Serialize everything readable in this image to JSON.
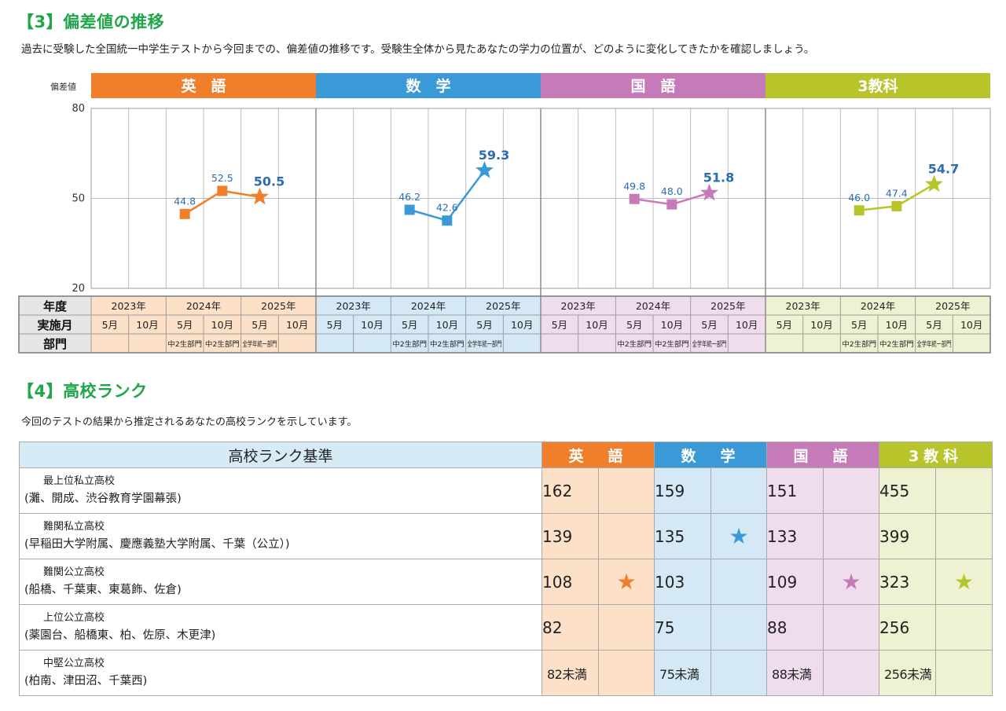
{
  "section3": {
    "title": "【3】偏差値の推移",
    "description": "過去に受験した全国統一中学生テストから今回までの、偏差値の推移です。受験生全体から見たあなたの学力の位置が、どのように変化してきたかを確認しましょう。"
  },
  "section4": {
    "title": "【4】高校ランク",
    "description": "今回のテストの結果から推定されるあなたの高校ランクを示しています。"
  },
  "colors": {
    "english": "#ef7f2a",
    "math": "#3a9ad8",
    "japanese": "#c77ab8",
    "total": "#b8c52a",
    "english_light": "#fce0c8",
    "math_light": "#d4e8f6",
    "japanese_light": "#efdcec",
    "total_light": "#eef2d2",
    "criteria_header": "#d7ebf7",
    "row_header": "#e6e6e6",
    "grid": "#bdbdbd"
  },
  "chart_data": {
    "type": "line",
    "ylabel": "偏差値",
    "ylim": [
      20,
      80
    ],
    "yticks": [
      20,
      50,
      80
    ],
    "grid": true,
    "row_labels": {
      "year": "年度",
      "month": "実施月",
      "division": "部門"
    },
    "years": [
      {
        "label": "2023年",
        "span": [
          0,
          1
        ]
      },
      {
        "label": "2024年",
        "span": [
          2,
          3
        ]
      },
      {
        "label": "2025年",
        "span": [
          4,
          5
        ]
      }
    ],
    "months": [
      "5月",
      "10月",
      "5月",
      "10月",
      "5月",
      "10月"
    ],
    "divisions": [
      "",
      "",
      "中2生部門",
      "中2生部門",
      "全学年統一部門",
      ""
    ],
    "series": [
      {
        "name": "英　語",
        "colorKey": "english",
        "points": [
          {
            "slot": 2,
            "value": 44.8,
            "label": "44.8"
          },
          {
            "slot": 3,
            "value": 52.5,
            "label": "52.5"
          },
          {
            "slot": 4,
            "value": 50.5,
            "label": "50.5",
            "current": true
          }
        ]
      },
      {
        "name": "数　学",
        "colorKey": "math",
        "points": [
          {
            "slot": 2,
            "value": 46.2,
            "label": "46.2"
          },
          {
            "slot": 3,
            "value": 42.6,
            "label": "42.6"
          },
          {
            "slot": 4,
            "value": 59.3,
            "label": "59.3",
            "current": true
          }
        ]
      },
      {
        "name": "国　語",
        "colorKey": "japanese",
        "points": [
          {
            "slot": 2,
            "value": 49.8,
            "label": "49.8"
          },
          {
            "slot": 3,
            "value": 48.0,
            "label": "48.0"
          },
          {
            "slot": 4,
            "value": 51.8,
            "label": "51.8",
            "current": true
          }
        ]
      },
      {
        "name": "3教科",
        "colorKey": "total",
        "points": [
          {
            "slot": 2,
            "value": 46.0,
            "label": "46.0"
          },
          {
            "slot": 3,
            "value": 47.4,
            "label": "47.4"
          },
          {
            "slot": 4,
            "value": 54.7,
            "label": "54.7",
            "current": true
          }
        ]
      }
    ]
  },
  "rank_table": {
    "criteria_header": "高校ランク基準",
    "subjects": [
      {
        "name": "英　語",
        "colorKey": "english"
      },
      {
        "name": "数　学",
        "colorKey": "math"
      },
      {
        "name": "国　語",
        "colorKey": "japanese"
      },
      {
        "name": "3教科",
        "colorKey": "total"
      }
    ],
    "star_glyph": "★",
    "rows": [
      {
        "name": "最上位私立高校",
        "schools": "(灘、開成、渋谷教育学園幕張)",
        "values": [
          "162",
          "159",
          "151",
          "455"
        ],
        "marks": [
          false,
          false,
          false,
          false
        ]
      },
      {
        "name": "難関私立高校",
        "schools": "(早稲田大学附属、慶應義塾大学附属、千葉（公立）)",
        "values": [
          "139",
          "135",
          "133",
          "399"
        ],
        "marks": [
          false,
          true,
          false,
          false
        ]
      },
      {
        "name": "難関公立高校",
        "schools": "(船橋、千葉東、東葛飾、佐倉)",
        "values": [
          "108",
          "103",
          "109",
          "323"
        ],
        "marks": [
          true,
          false,
          true,
          true
        ]
      },
      {
        "name": "上位公立高校",
        "schools": "(薬園台、船橋東、柏、佐原、木更津)",
        "values": [
          "82",
          "75",
          "88",
          "256"
        ],
        "marks": [
          false,
          false,
          false,
          false
        ]
      },
      {
        "name": "中堅公立高校",
        "schools": "(柏南、津田沼、千葉西)",
        "values": [
          "82未満",
          "75未満",
          "88未満",
          "256未満"
        ],
        "marks": [
          false,
          false,
          false,
          false
        ]
      }
    ]
  }
}
